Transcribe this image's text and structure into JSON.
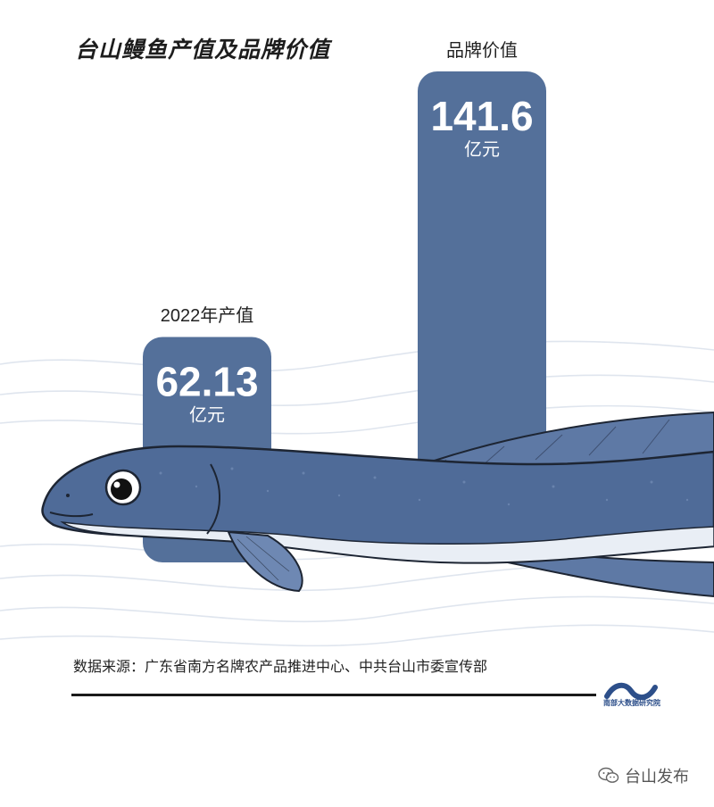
{
  "title": "台山鳗鱼产值及品牌价值",
  "chart_data": {
    "type": "bar",
    "categories": [
      "2022年产值",
      "品牌价值"
    ],
    "values": [
      62.13,
      141.6
    ],
    "value_labels": [
      "62.13",
      "141.6"
    ],
    "unit": "亿元",
    "title": "台山鳗鱼产值及品牌价值",
    "xlabel": "",
    "ylabel": "",
    "ylim": [
      0,
      141.6
    ],
    "grid": false,
    "bar_color": "#54709a"
  },
  "source": "数据来源：广东省南方名牌农产品推进中心、中共台山市委宣传部",
  "logo": {
    "icon": "wave-logo-icon",
    "text": "南部大数据研究院"
  },
  "watermark": {
    "icon": "wechat-icon",
    "text": "台山发布"
  },
  "colors": {
    "bar": "#54709a",
    "eel_body": "#4f6b98",
    "eel_belly": "#e9eef5",
    "text": "#1d1d1d"
  }
}
